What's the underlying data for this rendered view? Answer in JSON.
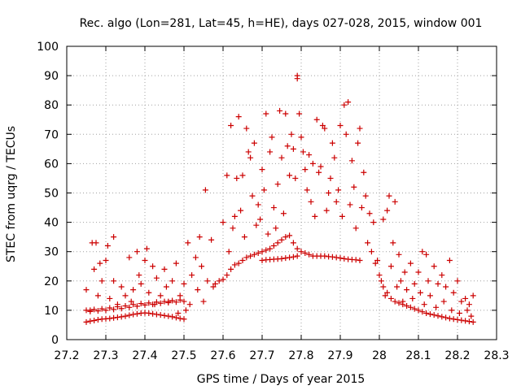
{
  "chart_data": {
    "type": "scatter",
    "title": "Rec. algo (Lon=281, Lat=45, h=HE), days 027-028, 2015, window 001",
    "xlabel": "GPS time / Days of year 2015",
    "ylabel": "STEC from uqrg / TECUs",
    "xlim": [
      27.2,
      28.3
    ],
    "ylim": [
      0,
      100
    ],
    "xticks": [
      27.2,
      27.3,
      27.4,
      27.5,
      27.6,
      27.7,
      27.8,
      27.9,
      28,
      28.1,
      28.2,
      28.3
    ],
    "xtick_labels": [
      "27.2",
      "27.3",
      "27.4",
      "27.5",
      "27.6",
      "27.7",
      "27.8",
      "27.9",
      "28",
      "28.1",
      "28.2",
      "28.3"
    ],
    "yticks": [
      0,
      10,
      20,
      30,
      40,
      50,
      60,
      70,
      80,
      90,
      100
    ],
    "ytick_labels": [
      "0",
      "10",
      "20",
      "30",
      "40",
      "50",
      "60",
      "70",
      "80",
      "90",
      "100"
    ],
    "grid": true,
    "marker": "plus",
    "color": "#cc0000",
    "points": [
      [
        27.25,
        6
      ],
      [
        27.26,
        6.3
      ],
      [
        27.27,
        6.5
      ],
      [
        27.28,
        6.8
      ],
      [
        27.29,
        7
      ],
      [
        27.3,
        7.1
      ],
      [
        27.31,
        7.2
      ],
      [
        27.32,
        7.4
      ],
      [
        27.33,
        7.6
      ],
      [
        27.34,
        7.8
      ],
      [
        27.35,
        8
      ],
      [
        27.36,
        8.3
      ],
      [
        27.37,
        8.6
      ],
      [
        27.38,
        8.8
      ],
      [
        27.39,
        9
      ],
      [
        27.4,
        9.1
      ],
      [
        27.41,
        9
      ],
      [
        27.42,
        8.8
      ],
      [
        27.43,
        8.6
      ],
      [
        27.44,
        8.4
      ],
      [
        27.45,
        8.2
      ],
      [
        27.46,
        8
      ],
      [
        27.47,
        7.8
      ],
      [
        27.48,
        7.5
      ],
      [
        27.49,
        7.2
      ],
      [
        27.5,
        7
      ],
      [
        27.25,
        10
      ],
      [
        27.26,
        9.6
      ],
      [
        27.27,
        10.3
      ],
      [
        27.28,
        9.8
      ],
      [
        27.29,
        10.5
      ],
      [
        27.3,
        10
      ],
      [
        27.31,
        10.8
      ],
      [
        27.32,
        10.3
      ],
      [
        27.33,
        11.2
      ],
      [
        27.34,
        10.6
      ],
      [
        27.35,
        11.5
      ],
      [
        27.36,
        11
      ],
      [
        27.37,
        12
      ],
      [
        27.38,
        11.4
      ],
      [
        27.39,
        12.3
      ],
      [
        27.4,
        11.8
      ],
      [
        27.41,
        12.5
      ],
      [
        27.42,
        12
      ],
      [
        27.43,
        12.8
      ],
      [
        27.44,
        12.4
      ],
      [
        27.45,
        13
      ],
      [
        27.46,
        12.6
      ],
      [
        27.47,
        13.3
      ],
      [
        27.48,
        12.8
      ],
      [
        27.49,
        13.5
      ],
      [
        27.5,
        13
      ],
      [
        27.25,
        17
      ],
      [
        27.26,
        10
      ],
      [
        27.265,
        33
      ],
      [
        27.275,
        33
      ],
      [
        27.27,
        24
      ],
      [
        27.28,
        15
      ],
      [
        27.285,
        26
      ],
      [
        27.29,
        20
      ],
      [
        27.3,
        27
      ],
      [
        27.31,
        14
      ],
      [
        27.305,
        32
      ],
      [
        27.32,
        35
      ],
      [
        27.32,
        20
      ],
      [
        27.33,
        12
      ],
      [
        27.34,
        18
      ],
      [
        27.35,
        15
      ],
      [
        27.36,
        28
      ],
      [
        27.365,
        13
      ],
      [
        27.37,
        17
      ],
      [
        27.38,
        30
      ],
      [
        27.385,
        22
      ],
      [
        27.39,
        19
      ],
      [
        27.4,
        27
      ],
      [
        27.405,
        31
      ],
      [
        27.41,
        16
      ],
      [
        27.42,
        25
      ],
      [
        27.425,
        12
      ],
      [
        27.43,
        21
      ],
      [
        27.44,
        15
      ],
      [
        27.45,
        24
      ],
      [
        27.455,
        18
      ],
      [
        27.46,
        13
      ],
      [
        27.47,
        20
      ],
      [
        27.48,
        26
      ],
      [
        27.485,
        9
      ],
      [
        27.49,
        15
      ],
      [
        27.5,
        19
      ],
      [
        27.505,
        10
      ],
      [
        27.51,
        33
      ],
      [
        27.515,
        12
      ],
      [
        27.52,
        22
      ],
      [
        27.53,
        28
      ],
      [
        27.535,
        17
      ],
      [
        27.54,
        35
      ],
      [
        27.545,
        25
      ],
      [
        27.55,
        13
      ],
      [
        27.555,
        51
      ],
      [
        27.56,
        20
      ],
      [
        27.57,
        34
      ],
      [
        27.575,
        18
      ],
      [
        27.58,
        19
      ],
      [
        27.59,
        20
      ],
      [
        27.6,
        20.5
      ],
      [
        27.61,
        22
      ],
      [
        27.62,
        24
      ],
      [
        27.63,
        25.5
      ],
      [
        27.64,
        26
      ],
      [
        27.65,
        27
      ],
      [
        27.66,
        28
      ],
      [
        27.67,
        28.5
      ],
      [
        27.68,
        29
      ],
      [
        27.69,
        29.5
      ],
      [
        27.7,
        30
      ],
      [
        27.71,
        30.5
      ],
      [
        27.72,
        31
      ],
      [
        27.73,
        32
      ],
      [
        27.74,
        33
      ],
      [
        27.75,
        34
      ],
      [
        27.76,
        35
      ],
      [
        27.77,
        35.5
      ],
      [
        27.78,
        33
      ],
      [
        27.79,
        31
      ],
      [
        27.8,
        30
      ],
      [
        27.81,
        29.5
      ],
      [
        27.82,
        29
      ],
      [
        27.83,
        28.5
      ],
      [
        27.84,
        28.5
      ],
      [
        27.85,
        28.5
      ],
      [
        27.86,
        28.5
      ],
      [
        27.87,
        28.3
      ],
      [
        27.88,
        28.2
      ],
      [
        27.89,
        28
      ],
      [
        27.9,
        27.8
      ],
      [
        27.91,
        27.6
      ],
      [
        27.92,
        27.4
      ],
      [
        27.93,
        27.3
      ],
      [
        27.94,
        27.2
      ],
      [
        27.95,
        27
      ],
      [
        27.7,
        27
      ],
      [
        27.71,
        27.2
      ],
      [
        27.72,
        27.3
      ],
      [
        27.73,
        27.4
      ],
      [
        27.74,
        27.5
      ],
      [
        27.75,
        27.6
      ],
      [
        27.76,
        27.8
      ],
      [
        27.77,
        28
      ],
      [
        27.78,
        28.2
      ],
      [
        27.79,
        28.5
      ],
      [
        27.6,
        40
      ],
      [
        27.61,
        56
      ],
      [
        27.615,
        30
      ],
      [
        27.62,
        73
      ],
      [
        27.625,
        38
      ],
      [
        27.63,
        42
      ],
      [
        27.635,
        55
      ],
      [
        27.64,
        76
      ],
      [
        27.645,
        44
      ],
      [
        27.65,
        56
      ],
      [
        27.655,
        35
      ],
      [
        27.66,
        72
      ],
      [
        27.665,
        64
      ],
      [
        27.67,
        62
      ],
      [
        27.675,
        49
      ],
      [
        27.68,
        67
      ],
      [
        27.685,
        39
      ],
      [
        27.69,
        46
      ],
      [
        27.695,
        41
      ],
      [
        27.7,
        58
      ],
      [
        27.705,
        51
      ],
      [
        27.71,
        77
      ],
      [
        27.715,
        36
      ],
      [
        27.72,
        64
      ],
      [
        27.725,
        69
      ],
      [
        27.73,
        45
      ],
      [
        27.735,
        38
      ],
      [
        27.74,
        53
      ],
      [
        27.745,
        78
      ],
      [
        27.75,
        62
      ],
      [
        27.755,
        43
      ],
      [
        27.76,
        77
      ],
      [
        27.765,
        66
      ],
      [
        27.77,
        56
      ],
      [
        27.775,
        70
      ],
      [
        27.78,
        65
      ],
      [
        27.785,
        55
      ],
      [
        27.79,
        90
      ],
      [
        27.79,
        89
      ],
      [
        27.795,
        77
      ],
      [
        27.8,
        69
      ],
      [
        27.805,
        64
      ],
      [
        27.81,
        58
      ],
      [
        27.815,
        51
      ],
      [
        27.82,
        63
      ],
      [
        27.825,
        47
      ],
      [
        27.83,
        60
      ],
      [
        27.835,
        42
      ],
      [
        27.84,
        75
      ],
      [
        27.845,
        57
      ],
      [
        27.85,
        59
      ],
      [
        27.855,
        73
      ],
      [
        27.86,
        72
      ],
      [
        27.865,
        44
      ],
      [
        27.87,
        50
      ],
      [
        27.875,
        55
      ],
      [
        27.88,
        67
      ],
      [
        27.885,
        62
      ],
      [
        27.89,
        47
      ],
      [
        27.895,
        51
      ],
      [
        27.9,
        73
      ],
      [
        27.905,
        42
      ],
      [
        27.91,
        80
      ],
      [
        27.915,
        70
      ],
      [
        27.92,
        81
      ],
      [
        27.925,
        46
      ],
      [
        27.93,
        61
      ],
      [
        27.935,
        52
      ],
      [
        27.94,
        38
      ],
      [
        27.945,
        67
      ],
      [
        27.95,
        72
      ],
      [
        27.955,
        45
      ],
      [
        27.96,
        57
      ],
      [
        27.965,
        49
      ],
      [
        27.97,
        33
      ],
      [
        27.975,
        43
      ],
      [
        27.98,
        30
      ],
      [
        27.99,
        26
      ],
      [
        28.0,
        22
      ],
      [
        28.01,
        18
      ],
      [
        28.02,
        16
      ],
      [
        28.03,
        14
      ],
      [
        28.04,
        13
      ],
      [
        28.05,
        12.5
      ],
      [
        28.06,
        12
      ],
      [
        28.07,
        11.5
      ],
      [
        28.08,
        11
      ],
      [
        28.09,
        10.5
      ],
      [
        28.1,
        10
      ],
      [
        28.11,
        9.5
      ],
      [
        28.12,
        9
      ],
      [
        28.13,
        8.7
      ],
      [
        28.14,
        8.4
      ],
      [
        28.15,
        8.1
      ],
      [
        28.16,
        7.8
      ],
      [
        28.17,
        7.5
      ],
      [
        28.18,
        7.2
      ],
      [
        28.19,
        7
      ],
      [
        28.2,
        6.8
      ],
      [
        28.21,
        6.6
      ],
      [
        28.22,
        6.4
      ],
      [
        28.23,
        6.2
      ],
      [
        28.24,
        6
      ],
      [
        27.985,
        40
      ],
      [
        27.995,
        27
      ],
      [
        28.005,
        20
      ],
      [
        28.01,
        41
      ],
      [
        28.015,
        15
      ],
      [
        28.02,
        44
      ],
      [
        28.025,
        49
      ],
      [
        28.03,
        25
      ],
      [
        28.035,
        33
      ],
      [
        28.04,
        47
      ],
      [
        28.045,
        18
      ],
      [
        28.05,
        29
      ],
      [
        28.055,
        20
      ],
      [
        28.06,
        13
      ],
      [
        28.065,
        23
      ],
      [
        28.07,
        17
      ],
      [
        28.08,
        26
      ],
      [
        28.085,
        14
      ],
      [
        28.09,
        19
      ],
      [
        28.1,
        23
      ],
      [
        28.105,
        16
      ],
      [
        28.11,
        30
      ],
      [
        28.115,
        12
      ],
      [
        28.12,
        29
      ],
      [
        28.125,
        20
      ],
      [
        28.13,
        15
      ],
      [
        28.14,
        25
      ],
      [
        28.145,
        11
      ],
      [
        28.15,
        19
      ],
      [
        28.16,
        22
      ],
      [
        28.165,
        13
      ],
      [
        28.17,
        18
      ],
      [
        28.18,
        27
      ],
      [
        28.185,
        10
      ],
      [
        28.19,
        16
      ],
      [
        28.2,
        20
      ],
      [
        28.205,
        9
      ],
      [
        28.21,
        13
      ],
      [
        28.22,
        14
      ],
      [
        28.225,
        10
      ],
      [
        28.23,
        12
      ],
      [
        28.235,
        8
      ],
      [
        28.24,
        15
      ]
    ]
  }
}
